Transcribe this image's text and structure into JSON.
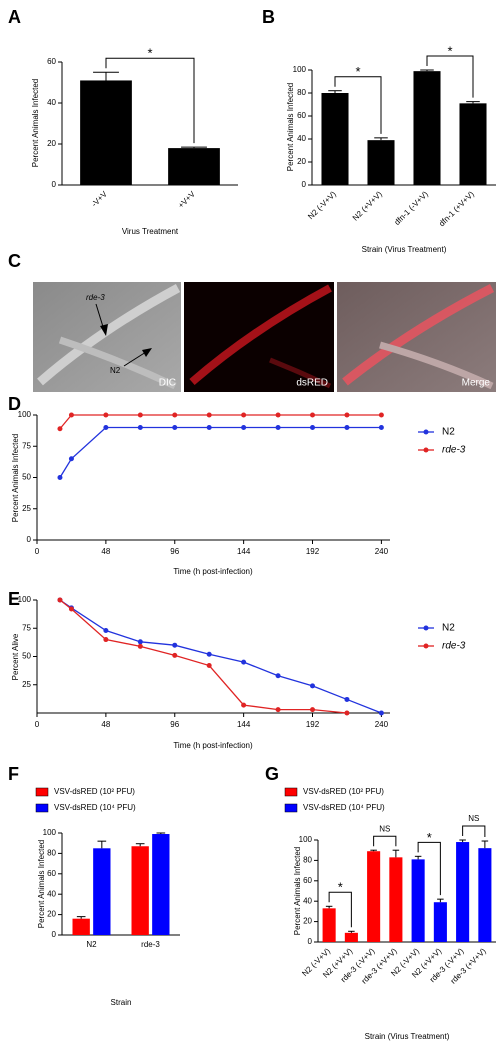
{
  "chart_data": [
    {
      "panel": "A",
      "type": "bar",
      "categories": [
        "-V+V",
        "+V+V"
      ],
      "values": [
        51,
        18
      ],
      "errors": [
        4,
        0.5
      ],
      "color": "#000000",
      "ylim": [
        0,
        60
      ],
      "yticks": [
        0,
        20,
        40,
        60
      ],
      "xlabel": "Virus Treatment",
      "ylabel": "Percent Animals Infected",
      "annotations": [
        {
          "text": "*",
          "categories": [
            0,
            1
          ]
        }
      ]
    },
    {
      "panel": "B",
      "type": "bar",
      "categories": [
        "N2 (-V+V)",
        "N2 (+V+V)",
        "dfn-1 (-V+V)",
        "dfn-1 (+V+V)"
      ],
      "values": [
        80,
        39,
        99,
        71
      ],
      "errors": [
        2,
        2,
        1,
        1.5
      ],
      "color": "#000000",
      "ylim": [
        0,
        100
      ],
      "yticks": [
        0,
        20,
        40,
        60,
        80,
        100
      ],
      "xlabel": "Strain (Virus Treatment)",
      "ylabel": "Percent Animals Infected",
      "annotations": [
        {
          "text": "*",
          "categories": [
            0,
            1
          ]
        },
        {
          "text": "*",
          "categories": [
            2,
            3
          ]
        }
      ]
    },
    {
      "panel": "D",
      "type": "line",
      "x": [
        16,
        24,
        48,
        72,
        96,
        120,
        144,
        168,
        192,
        216,
        240
      ],
      "series": [
        {
          "name": "N2",
          "color": "#2233dd",
          "values": [
            50,
            65,
            90,
            90,
            90,
            90,
            90,
            90,
            90,
            90,
            90
          ]
        },
        {
          "name": "rde-3",
          "color": "#e02424",
          "values": [
            89,
            100,
            100,
            100,
            100,
            100,
            100,
            100,
            100,
            100,
            100
          ]
        }
      ],
      "xlim": [
        0,
        246
      ],
      "xticks": [
        0,
        48,
        96,
        144,
        192,
        240
      ],
      "ylim": [
        0,
        100
      ],
      "yticks": [
        0,
        25,
        50,
        75,
        100
      ],
      "xlabel": "Time (h post-infection)",
      "ylabel": "Percent Animals Infected"
    },
    {
      "panel": "E",
      "type": "line",
      "x": [
        16,
        24,
        48,
        72,
        96,
        120,
        144,
        168,
        192,
        216,
        240
      ],
      "series": [
        {
          "name": "N2",
          "color": "#2233dd",
          "values": [
            100,
            93,
            73,
            63,
            60,
            52,
            45,
            33,
            24,
            12,
            0
          ]
        },
        {
          "name": "rde-3",
          "color": "#e02424",
          "values": [
            100,
            92,
            65,
            59,
            51,
            42,
            7,
            3,
            3,
            0,
            null
          ]
        }
      ],
      "xlim": [
        0,
        246
      ],
      "xticks": [
        0,
        48,
        96,
        144,
        192,
        240
      ],
      "ylim": [
        0,
        100
      ],
      "yticks": [
        25,
        50,
        75,
        100
      ],
      "xlabel": "Time (h post-infection)",
      "ylabel": "Percent Alive"
    },
    {
      "panel": "F",
      "type": "bar",
      "categories": [
        "N2",
        "rde-3"
      ],
      "series": [
        {
          "name": "VSV-dsRED (10² PFU)",
          "color": "#ff0000",
          "values": [
            16,
            87
          ],
          "errors": [
            2,
            2.5
          ]
        },
        {
          "name": "VSV-dsRED (10⁴ PFU)",
          "color": "#0000ff",
          "values": [
            85,
            99
          ],
          "errors": [
            7,
            1
          ]
        }
      ],
      "ylim": [
        0,
        100
      ],
      "yticks": [
        0,
        20,
        40,
        60,
        80,
        100
      ],
      "xlabel": "Strain",
      "ylabel": "Percent Animals Infected"
    },
    {
      "panel": "G",
      "type": "bar",
      "categories": [
        "N2 (-V+V)",
        "N2 (+V+V)",
        "rde-3 (-V+V)",
        "rde-3 (+V+V)",
        "N2 (-V+V)",
        "N2 (+V+V)",
        "rde-3 (-V+V)",
        "rde-3 (+V+V)"
      ],
      "series": [
        {
          "name": "VSV-dsRED (10² PFU)",
          "color": "#ff0000",
          "values": [
            33,
            9,
            89,
            83,
            null,
            null,
            null,
            null
          ],
          "errors": [
            2,
            1.5,
            1,
            7,
            null,
            null,
            null,
            null
          ]
        },
        {
          "name": "VSV-dsRED (10⁴ PFU)",
          "color": "#0000ff",
          "values": [
            null,
            null,
            null,
            null,
            81,
            39,
            98,
            92
          ],
          "errors": [
            null,
            null,
            null,
            null,
            3,
            3,
            2,
            7
          ]
        }
      ],
      "ylim": [
        0,
        100
      ],
      "yticks": [
        0,
        20,
        40,
        60,
        80,
        100
      ],
      "xlabel": "Strain (Virus Treatment)",
      "ylabel": "Percent Animals Infected",
      "annotations": [
        {
          "text": "*",
          "categories": [
            0,
            1
          ]
        },
        {
          "text": "NS",
          "categories": [
            2,
            3
          ]
        },
        {
          "text": "*",
          "categories": [
            4,
            5
          ]
        },
        {
          "text": "NS",
          "categories": [
            6,
            7
          ]
        }
      ]
    }
  ],
  "figure_c": {
    "panel": "C",
    "strain_top": "rde-3",
    "strain_bottom": "N2",
    "images": [
      "DIC",
      "dsRED",
      "Merge"
    ]
  }
}
